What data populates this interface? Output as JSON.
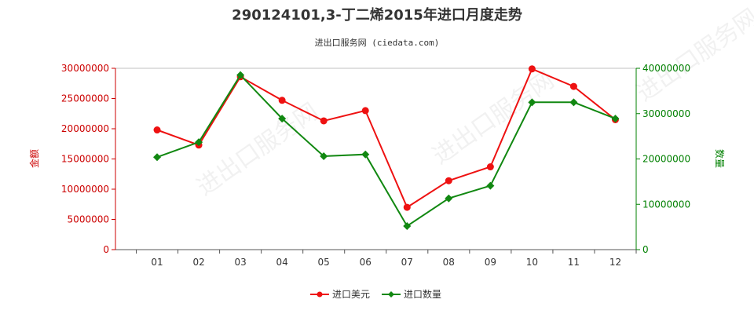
{
  "colors": {
    "amount": "#ee1111",
    "quantity": "#118811",
    "left_axis": "#cc0000",
    "right_axis": "#008000"
  },
  "chart_data": {
    "type": "line",
    "title": "290124101,3-丁二烯2015年进口月度走势",
    "subtitle": "进出口服务网 (ciedata.com)",
    "categories": [
      "01",
      "02",
      "03",
      "04",
      "05",
      "06",
      "07",
      "08",
      "09",
      "10",
      "11",
      "12"
    ],
    "ylabel_left": "金额",
    "ylabel_right": "数量",
    "ylim_left": [
      0,
      30000000
    ],
    "ylim_right": [
      0,
      40000000
    ],
    "yticks_left": [
      "0",
      "5000000",
      "10000000",
      "15000000",
      "20000000",
      "25000000",
      "30000000"
    ],
    "yticks_right": [
      "0",
      "10000000",
      "20000000",
      "30000000",
      "40000000"
    ],
    "watermark": "进出口服务网",
    "series": [
      {
        "name": "进口美元",
        "axis": "left",
        "values": [
          19800000,
          17300000,
          28600000,
          24700000,
          21300000,
          23000000,
          7000000,
          11400000,
          13700000,
          29900000,
          27000000,
          21500000
        ]
      },
      {
        "name": "进口数量",
        "axis": "right",
        "values": [
          20400000,
          23700000,
          38500000,
          28900000,
          20600000,
          21000000,
          5200000,
          11300000,
          14100000,
          32500000,
          32500000,
          28900000
        ]
      }
    ],
    "legend_position": "bottom-center",
    "grid": false
  }
}
